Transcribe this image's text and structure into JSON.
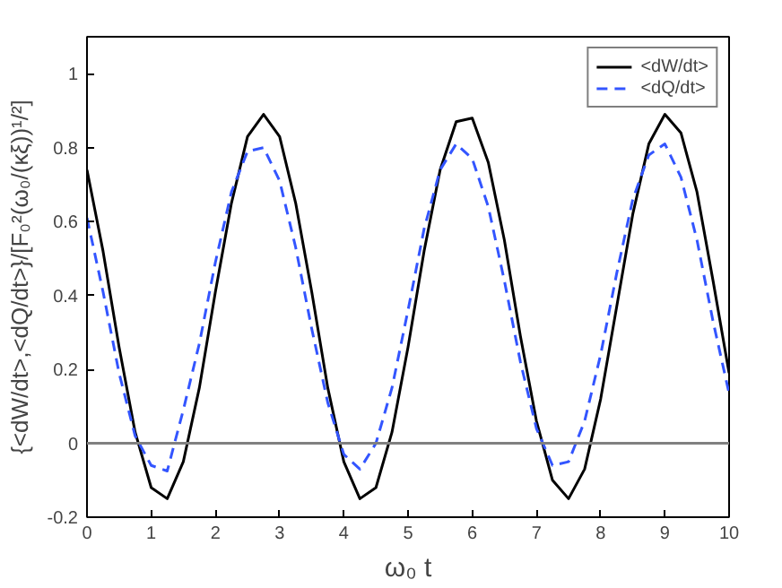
{
  "chart_data": {
    "type": "line",
    "xlabel": "ω₀ t",
    "ylabel": "{<dW/dt>,<dQ/dt>}/[F₀²(ω₀/(κξ))¹/²]",
    "x": [
      0,
      0.25,
      0.5,
      0.75,
      1,
      1.25,
      1.5,
      1.75,
      2,
      2.25,
      2.5,
      2.75,
      3,
      3.25,
      3.5,
      3.75,
      4,
      4.25,
      4.5,
      4.75,
      5,
      5.25,
      5.5,
      5.75,
      6,
      6.25,
      6.5,
      6.75,
      7,
      7.25,
      7.5,
      7.75,
      8,
      8.25,
      8.5,
      8.75,
      9,
      9.25,
      9.5,
      9.75,
      10
    ],
    "series": [
      {
        "name": "<dW/dt>",
        "color": "#000000",
        "line_style": "solid",
        "values": [
          0.74,
          0.52,
          0.26,
          0.03,
          -0.12,
          -0.15,
          -0.05,
          0.15,
          0.41,
          0.65,
          0.83,
          0.89,
          0.83,
          0.65,
          0.41,
          0.15,
          -0.05,
          -0.15,
          -0.12,
          0.03,
          0.26,
          0.52,
          0.74,
          0.87,
          0.88,
          0.76,
          0.55,
          0.29,
          0.06,
          -0.1,
          -0.15,
          -0.07,
          0.12,
          0.37,
          0.62,
          0.81,
          0.89,
          0.84,
          0.68,
          0.44,
          0.19
        ]
      },
      {
        "name": "<dQ/dt>",
        "color": "#3355ff",
        "line_style": "dashed",
        "values": [
          0.61,
          0.41,
          0.19,
          0.02,
          -0.06,
          -0.075,
          0.09,
          0.27,
          0.49,
          0.68,
          0.79,
          0.8,
          0.71,
          0.53,
          0.31,
          0.11,
          -0.03,
          -0.07,
          0.0,
          0.15,
          0.36,
          0.58,
          0.74,
          0.81,
          0.77,
          0.64,
          0.44,
          0.22,
          0.04,
          -0.06,
          -0.05,
          0.06,
          0.24,
          0.46,
          0.66,
          0.78,
          0.81,
          0.72,
          0.55,
          0.33,
          0.135
        ]
      }
    ],
    "xlim": [
      0,
      10
    ],
    "ylim": [
      -0.2,
      1.1
    ],
    "xticks": [
      0,
      1,
      2,
      3,
      4,
      5,
      6,
      7,
      8,
      9,
      10
    ],
    "yticks": [
      -0.2,
      0,
      0.2,
      0.4,
      0.6,
      0.8,
      1
    ],
    "ref_lines": [
      {
        "axis": "y",
        "value": 0,
        "color": "#808080"
      }
    ],
    "legend": "top right",
    "grid": false,
    "marker": "none"
  }
}
